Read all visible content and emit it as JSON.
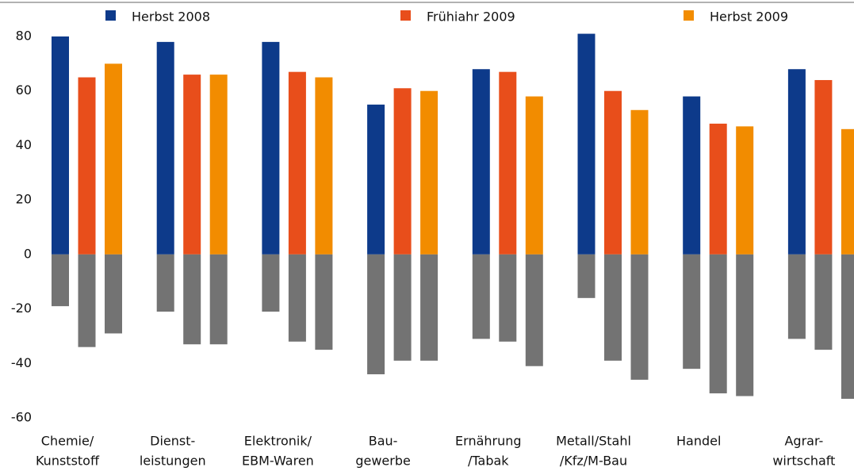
{
  "chart_data": {
    "type": "bar",
    "categories": [
      [
        "Chemie/",
        "Kunststoff"
      ],
      [
        "Dienst-",
        "leistungen"
      ],
      [
        "Elektronik/",
        "EBM-Waren"
      ],
      [
        "Bau-",
        "gewerbe"
      ],
      [
        "Ernährung",
        "/Tabak"
      ],
      [
        "Metall/Stahl",
        "/Kfz/M-Bau"
      ],
      [
        "Handel"
      ],
      [
        "Agrar-",
        "wirtschaft"
      ]
    ],
    "series": [
      {
        "name": "Herbst 2008",
        "color": "#0d3a8a",
        "values": [
          80,
          78,
          78,
          55,
          68,
          81,
          58,
          68
        ],
        "negative_values": [
          -19,
          -21,
          -21,
          -44,
          -31,
          -16,
          -42,
          -31
        ]
      },
      {
        "name": "Frühiahr 2009",
        "color": "#e84e1b",
        "values": [
          65,
          66,
          67,
          61,
          67,
          60,
          48,
          64
        ],
        "negative_values": [
          -34,
          -33,
          -32,
          -39,
          -32,
          -39,
          -51,
          -35
        ]
      },
      {
        "name": "Herbst 2009",
        "color": "#f28c00",
        "values": [
          70,
          66,
          65,
          60,
          58,
          53,
          47,
          46
        ],
        "negative_values": [
          -29,
          -33,
          -35,
          -39,
          -41,
          -46,
          -52,
          -53
        ]
      }
    ],
    "negative_color": "#737373",
    "ylim": [
      -60,
      80
    ],
    "yticks": [
      80,
      60,
      40,
      20,
      0,
      -20,
      -40,
      -60
    ],
    "grid": false
  }
}
